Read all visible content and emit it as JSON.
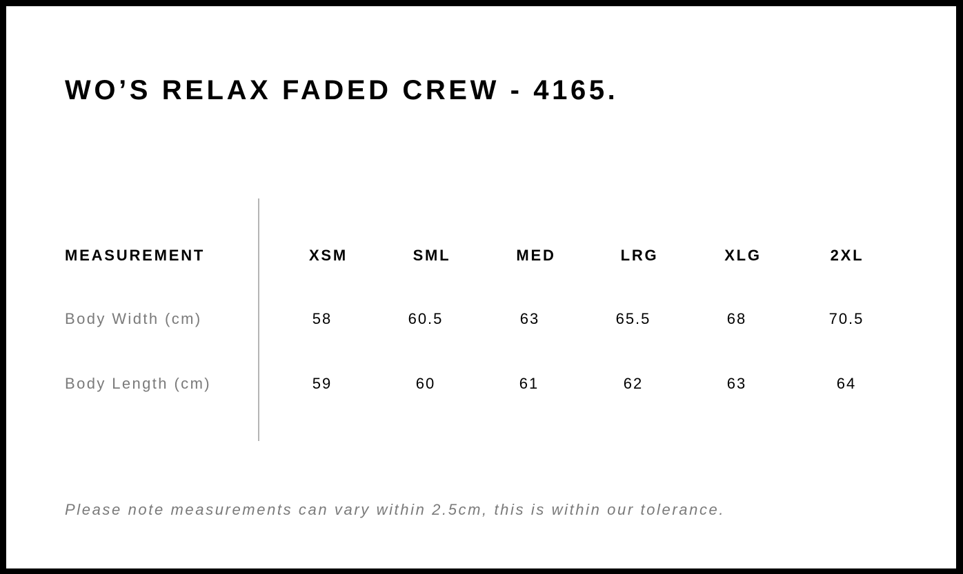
{
  "title": "WO’S RELAX FADED CREW - 4165.",
  "table": {
    "header_label": "MEASUREMENT",
    "sizes": [
      "XSM",
      "SML",
      "MED",
      "LRG",
      "XLG",
      "2XL"
    ],
    "rows": [
      {
        "label": "Body Width (cm)",
        "values": [
          "58",
          "60.5",
          "63",
          "65.5",
          "68",
          "70.5"
        ]
      },
      {
        "label": "Body Length (cm)",
        "values": [
          "59",
          "60",
          "61",
          "62",
          "63",
          "64"
        ]
      }
    ]
  },
  "note": "Please note measurements can vary within 2.5cm, this is within our tolerance.",
  "colors": {
    "border": "#000000",
    "label_text": "#7a7a7a",
    "divider": "#b5b5b5"
  }
}
